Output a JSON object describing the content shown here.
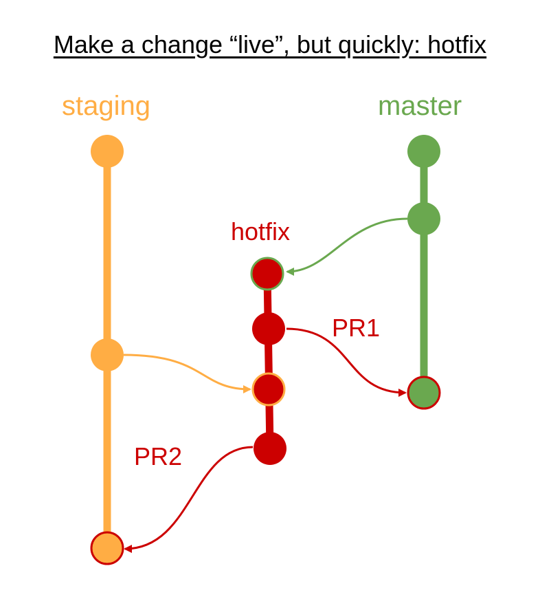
{
  "title": "Make a change “live”, but quickly: hotfix",
  "branches": {
    "staging": {
      "label": "staging",
      "color": "#ffad44"
    },
    "master": {
      "label": "master",
      "color": "#6aa84f"
    },
    "hotfix": {
      "label": "hotfix",
      "color": "#cc0000"
    }
  },
  "pull_requests": {
    "pr1": {
      "label": "PR1",
      "from": "hotfix",
      "to": "master"
    },
    "pr2": {
      "label": "PR2",
      "from": "hotfix",
      "to": "staging"
    }
  },
  "colors": {
    "staging": "#ffad44",
    "master": "#6aa84f",
    "hotfix": "#cc0000"
  }
}
